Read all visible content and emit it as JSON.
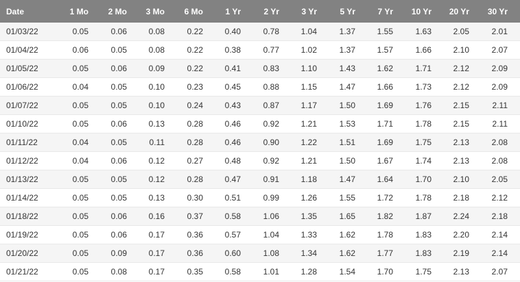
{
  "table": {
    "headers": [
      "Date",
      "1 Mo",
      "2 Mo",
      "3 Mo",
      "6 Mo",
      "1 Yr",
      "2 Yr",
      "3 Yr",
      "5 Yr",
      "7 Yr",
      "10 Yr",
      "20 Yr",
      "30 Yr"
    ],
    "rows": [
      [
        "01/03/22",
        "0.05",
        "0.06",
        "0.08",
        "0.22",
        "0.40",
        "0.78",
        "1.04",
        "1.37",
        "1.55",
        "1.63",
        "2.05",
        "2.01"
      ],
      [
        "01/04/22",
        "0.06",
        "0.05",
        "0.08",
        "0.22",
        "0.38",
        "0.77",
        "1.02",
        "1.37",
        "1.57",
        "1.66",
        "2.10",
        "2.07"
      ],
      [
        "01/05/22",
        "0.05",
        "0.06",
        "0.09",
        "0.22",
        "0.41",
        "0.83",
        "1.10",
        "1.43",
        "1.62",
        "1.71",
        "2.12",
        "2.09"
      ],
      [
        "01/06/22",
        "0.04",
        "0.05",
        "0.10",
        "0.23",
        "0.45",
        "0.88",
        "1.15",
        "1.47",
        "1.66",
        "1.73",
        "2.12",
        "2.09"
      ],
      [
        "01/07/22",
        "0.05",
        "0.05",
        "0.10",
        "0.24",
        "0.43",
        "0.87",
        "1.17",
        "1.50",
        "1.69",
        "1.76",
        "2.15",
        "2.11"
      ],
      [
        "01/10/22",
        "0.05",
        "0.06",
        "0.13",
        "0.28",
        "0.46",
        "0.92",
        "1.21",
        "1.53",
        "1.71",
        "1.78",
        "2.15",
        "2.11"
      ],
      [
        "01/11/22",
        "0.04",
        "0.05",
        "0.11",
        "0.28",
        "0.46",
        "0.90",
        "1.22",
        "1.51",
        "1.69",
        "1.75",
        "2.13",
        "2.08"
      ],
      [
        "01/12/22",
        "0.04",
        "0.06",
        "0.12",
        "0.27",
        "0.48",
        "0.92",
        "1.21",
        "1.50",
        "1.67",
        "1.74",
        "2.13",
        "2.08"
      ],
      [
        "01/13/22",
        "0.05",
        "0.05",
        "0.12",
        "0.28",
        "0.47",
        "0.91",
        "1.18",
        "1.47",
        "1.64",
        "1.70",
        "2.10",
        "2.05"
      ],
      [
        "01/14/22",
        "0.05",
        "0.05",
        "0.13",
        "0.30",
        "0.51",
        "0.99",
        "1.26",
        "1.55",
        "1.72",
        "1.78",
        "2.18",
        "2.12"
      ],
      [
        "01/18/22",
        "0.05",
        "0.06",
        "0.16",
        "0.37",
        "0.58",
        "1.06",
        "1.35",
        "1.65",
        "1.82",
        "1.87",
        "2.24",
        "2.18"
      ],
      [
        "01/19/22",
        "0.05",
        "0.06",
        "0.17",
        "0.36",
        "0.57",
        "1.04",
        "1.33",
        "1.62",
        "1.78",
        "1.83",
        "2.20",
        "2.14"
      ],
      [
        "01/20/22",
        "0.05",
        "0.09",
        "0.17",
        "0.36",
        "0.60",
        "1.08",
        "1.34",
        "1.62",
        "1.77",
        "1.83",
        "2.19",
        "2.14"
      ],
      [
        "01/21/22",
        "0.05",
        "0.08",
        "0.17",
        "0.35",
        "0.58",
        "1.01",
        "1.28",
        "1.54",
        "1.70",
        "1.75",
        "2.13",
        "2.07"
      ]
    ]
  },
  "colors": {
    "header_bg": "#828282",
    "header_text": "#ffffff",
    "row_alt_bg": "#f5f5f5",
    "row_bg": "#ffffff",
    "text": "#333333"
  }
}
